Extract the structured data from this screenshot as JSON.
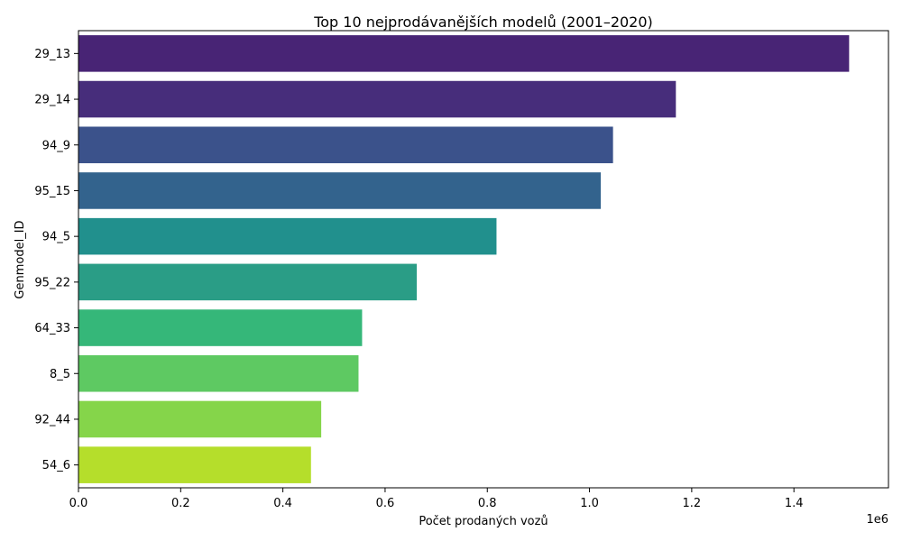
{
  "chart_data": {
    "type": "bar",
    "orientation": "horizontal",
    "title": "Top 10 nejprodávanějších modelů (2001–2020)",
    "xlabel": "Počet prodaných vozů",
    "ylabel": "Genmodel_ID",
    "x_offset_label": "1e6",
    "xlim": [
      0,
      1.585
    ],
    "x_ticks": [
      0.0,
      0.2,
      0.4,
      0.6,
      0.8,
      1.0,
      1.2,
      1.4
    ],
    "x_tick_labels": [
      "0.0",
      "0.2",
      "0.4",
      "0.6",
      "0.8",
      "1.0",
      "1.2",
      "1.4"
    ],
    "grid": false,
    "categories": [
      "29_13",
      "29_14",
      "94_9",
      "95_15",
      "94_5",
      "95_22",
      "64_33",
      "8_5",
      "92_44",
      "54_6"
    ],
    "values": [
      1.508,
      1.169,
      1.046,
      1.022,
      0.818,
      0.662,
      0.555,
      0.548,
      0.475,
      0.455
    ],
    "colors": [
      "#482475",
      "#472d7b",
      "#3b528b",
      "#33638d",
      "#21908d",
      "#2a9d86",
      "#35b779",
      "#5ec962",
      "#85d54a",
      "#b5de2b"
    ]
  }
}
